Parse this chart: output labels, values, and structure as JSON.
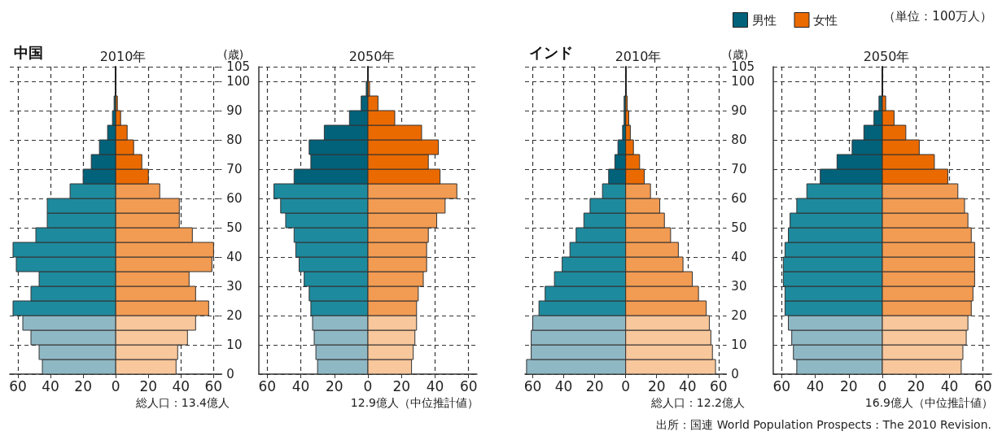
{
  "chart_data": [
    {
      "type": "bar",
      "orientation": "horizontal",
      "subtitle": "中国",
      "title": "2010年",
      "ylabel": "(歳)",
      "x": [
        2.5,
        7.5,
        12.5,
        17.5,
        22.5,
        27.5,
        32.5,
        37.5,
        42.5,
        47.5,
        52.5,
        57.5,
        62.5,
        67.5,
        72.5,
        77.5,
        82.5,
        87.5,
        92.5,
        97.5,
        102.5
      ],
      "xlim": [
        -65,
        65
      ],
      "xticks": [
        {
          "value": -60,
          "label": "60"
        },
        {
          "value": -40,
          "label": "40"
        },
        {
          "value": -20,
          "label": "20"
        },
        0,
        20,
        40,
        60
      ],
      "ylim": [
        0,
        105
      ],
      "yticks": [
        0,
        10,
        20,
        30,
        40,
        50,
        60,
        70,
        80,
        90,
        100,
        105
      ],
      "grid": true,
      "stacked": true,
      "legend": false,
      "series": [
        {
          "color": "#02627a",
          "colors": [
            "#8fb8c5",
            "#8fb8c5",
            "#8fb8c5",
            "#8fb8c5",
            "#1e8a9e",
            "#1e8a9e",
            "#1e8a9e",
            "#1e8a9e",
            "#1e8a9e",
            "#1e8a9e",
            "#1e8a9e",
            "#1e8a9e",
            "#1e8a9e",
            "#02627a",
            "#02627a",
            "#02627a",
            "#02627a",
            "#02627a",
            "#02627a",
            "#02627a",
            "#02627a"
          ],
          "values": [
            -45,
            -47,
            -52,
            -57,
            -63,
            -52,
            -47,
            -61,
            -63,
            -49,
            -42,
            -42,
            -28,
            -20,
            -15,
            -10,
            -5,
            -2,
            -1,
            0,
            0
          ]
        },
        {
          "color": "#eb6a00",
          "colors": [
            "#f8c79b",
            "#f8c79b",
            "#f8c79b",
            "#f8c79b",
            "#f29b52",
            "#f29b52",
            "#f29b52",
            "#f29b52",
            "#f29b52",
            "#f29b52",
            "#f29b52",
            "#f29b52",
            "#f29b52",
            "#eb6a00",
            "#eb6a00",
            "#eb6a00",
            "#eb6a00",
            "#eb6a00",
            "#eb6a00",
            "#eb6a00",
            "#eb6a00"
          ],
          "values": [
            37,
            38,
            44,
            49,
            57,
            49,
            45,
            59,
            60,
            47,
            39,
            39,
            27,
            20,
            16,
            11,
            7,
            3,
            1,
            0,
            0
          ]
        }
      ],
      "annotations": [
        "総人口：13.4億人"
      ]
    },
    {
      "type": "bar",
      "orientation": "horizontal",
      "title": "2050年",
      "x": [
        2.5,
        7.5,
        12.5,
        17.5,
        22.5,
        27.5,
        32.5,
        37.5,
        42.5,
        47.5,
        52.5,
        57.5,
        62.5,
        67.5,
        72.5,
        77.5,
        82.5,
        87.5,
        92.5,
        97.5,
        102.5
      ],
      "xlim": [
        -65,
        65
      ],
      "xticks": [
        {
          "value": -60,
          "label": "60"
        },
        {
          "value": -40,
          "label": "40"
        },
        {
          "value": -20,
          "label": "20"
        },
        0,
        20,
        40,
        60
      ],
      "ylim": [
        0,
        105
      ],
      "yticks": [
        0,
        10,
        20,
        30,
        40,
        50,
        60,
        70,
        80,
        90,
        100,
        105
      ],
      "tick_labels": "x",
      "grid": true,
      "stacked": true,
      "legend": false,
      "series": [
        {
          "color": "#02627a",
          "colors": [
            "#8fb8c5",
            "#8fb8c5",
            "#8fb8c5",
            "#8fb8c5",
            "#1e8a9e",
            "#1e8a9e",
            "#1e8a9e",
            "#1e8a9e",
            "#1e8a9e",
            "#1e8a9e",
            "#1e8a9e",
            "#1e8a9e",
            "#1e8a9e",
            "#02627a",
            "#02627a",
            "#02627a",
            "#02627a",
            "#02627a",
            "#02627a",
            "#02627a",
            "#02627a"
          ],
          "values": [
            -30,
            -31,
            -32,
            -33,
            -34,
            -35,
            -38,
            -41,
            -43,
            -44,
            -49,
            -52,
            -56,
            -44,
            -34,
            -35,
            -26,
            -11,
            -4,
            -1,
            0
          ]
        },
        {
          "color": "#eb6a00",
          "colors": [
            "#f8c79b",
            "#f8c79b",
            "#f8c79b",
            "#f8c79b",
            "#f29b52",
            "#f29b52",
            "#f29b52",
            "#f29b52",
            "#f29b52",
            "#f29b52",
            "#f29b52",
            "#f29b52",
            "#f29b52",
            "#eb6a00",
            "#eb6a00",
            "#eb6a00",
            "#eb6a00",
            "#eb6a00",
            "#eb6a00",
            "#eb6a00",
            "#eb6a00"
          ],
          "values": [
            26,
            27,
            28,
            29,
            29,
            30,
            33,
            35,
            35,
            36,
            41,
            46,
            53,
            43,
            36,
            42,
            32,
            16,
            6,
            1,
            0
          ]
        }
      ],
      "annotations": [
        "12.9億人（中位推計値）"
      ]
    },
    {
      "type": "bar",
      "orientation": "horizontal",
      "subtitle": "インド",
      "title": "2010年",
      "ylabel": "(歳)",
      "x": [
        2.5,
        7.5,
        12.5,
        17.5,
        22.5,
        27.5,
        32.5,
        37.5,
        42.5,
        47.5,
        52.5,
        57.5,
        62.5,
        67.5,
        72.5,
        77.5,
        82.5,
        87.5,
        92.5,
        97.5,
        102.5
      ],
      "xlim": [
        -65,
        65
      ],
      "xticks": [
        {
          "value": -60,
          "label": "60"
        },
        {
          "value": -40,
          "label": "40"
        },
        {
          "value": -20,
          "label": "20"
        },
        0,
        20,
        40,
        60
      ],
      "ylim": [
        0,
        105
      ],
      "yticks": [
        0,
        10,
        20,
        30,
        40,
        50,
        60,
        70,
        80,
        90,
        100,
        105
      ],
      "grid": true,
      "stacked": true,
      "legend": false,
      "series": [
        {
          "color": "#02627a",
          "colors": [
            "#8fb8c5",
            "#8fb8c5",
            "#8fb8c5",
            "#8fb8c5",
            "#1e8a9e",
            "#1e8a9e",
            "#1e8a9e",
            "#1e8a9e",
            "#1e8a9e",
            "#1e8a9e",
            "#1e8a9e",
            "#1e8a9e",
            "#1e8a9e",
            "#02627a",
            "#02627a",
            "#02627a",
            "#02627a",
            "#02627a",
            "#02627a",
            "#02627a",
            "#02627a"
          ],
          "values": [
            -64,
            -61,
            -61,
            -60,
            -56,
            -52,
            -46,
            -41,
            -36,
            -32,
            -27,
            -23,
            -15,
            -11,
            -7,
            -5,
            -2,
            -1,
            -1,
            0,
            0
          ]
        },
        {
          "color": "#eb6a00",
          "colors": [
            "#f8c79b",
            "#f8c79b",
            "#f8c79b",
            "#f8c79b",
            "#f29b52",
            "#f29b52",
            "#f29b52",
            "#f29b52",
            "#f29b52",
            "#f29b52",
            "#f29b52",
            "#f29b52",
            "#f29b52",
            "#eb6a00",
            "#eb6a00",
            "#eb6a00",
            "#eb6a00",
            "#eb6a00",
            "#eb6a00",
            "#eb6a00",
            "#eb6a00"
          ],
          "values": [
            58,
            56,
            55,
            54,
            52,
            47,
            43,
            37,
            34,
            29,
            25,
            22,
            16,
            12,
            9,
            5,
            3,
            2,
            1,
            0,
            0
          ]
        }
      ],
      "annotations": [
        "総人口：12.2億人"
      ]
    },
    {
      "type": "bar",
      "orientation": "horizontal",
      "title": "2050年",
      "x": [
        2.5,
        7.5,
        12.5,
        17.5,
        22.5,
        27.5,
        32.5,
        37.5,
        42.5,
        47.5,
        52.5,
        57.5,
        62.5,
        67.5,
        72.5,
        77.5,
        82.5,
        87.5,
        92.5,
        97.5,
        102.5
      ],
      "xlim": [
        -65,
        65
      ],
      "xticks": [
        {
          "value": -60,
          "label": "60"
        },
        {
          "value": -40,
          "label": "40"
        },
        {
          "value": -20,
          "label": "20"
        },
        0,
        20,
        40,
        60
      ],
      "ylim": [
        0,
        105
      ],
      "yticks": [
        0,
        10,
        20,
        30,
        40,
        50,
        60,
        70,
        80,
        90,
        100,
        105
      ],
      "tick_labels": "x",
      "grid": true,
      "stacked": true,
      "legend": "top left",
      "legend_title": "（単位：100万人）",
      "series": [
        {
          "name": "男性",
          "color": "#02627a",
          "colors": [
            "#8fb8c5",
            "#8fb8c5",
            "#8fb8c5",
            "#8fb8c5",
            "#1e8a9e",
            "#1e8a9e",
            "#1e8a9e",
            "#1e8a9e",
            "#1e8a9e",
            "#1e8a9e",
            "#1e8a9e",
            "#1e8a9e",
            "#1e8a9e",
            "#02627a",
            "#02627a",
            "#02627a",
            "#02627a",
            "#02627a",
            "#02627a",
            "#02627a",
            "#02627a"
          ],
          "values": [
            -51,
            -53,
            -54,
            -56,
            -58,
            -58,
            -59,
            -59,
            -58,
            -56,
            -55,
            -51,
            -45,
            -37,
            -27,
            -18,
            -11,
            -5,
            -2,
            0,
            0
          ]
        },
        {
          "name": "女性",
          "color": "#eb6a00",
          "colors": [
            "#f8c79b",
            "#f8c79b",
            "#f8c79b",
            "#f8c79b",
            "#f29b52",
            "#f29b52",
            "#f29b52",
            "#f29b52",
            "#f29b52",
            "#f29b52",
            "#f29b52",
            "#f29b52",
            "#f29b52",
            "#eb6a00",
            "#eb6a00",
            "#eb6a00",
            "#eb6a00",
            "#eb6a00",
            "#eb6a00",
            "#eb6a00",
            "#eb6a00"
          ],
          "values": [
            47,
            48,
            50,
            51,
            53,
            54,
            55,
            55,
            55,
            53,
            51,
            49,
            45,
            39,
            31,
            22,
            14,
            7,
            2,
            0,
            0
          ]
        }
      ],
      "annotations": [
        "16.9億人（中位推計値）",
        "出所：国連 World Population Prospects : The 2010 Revision."
      ]
    }
  ]
}
